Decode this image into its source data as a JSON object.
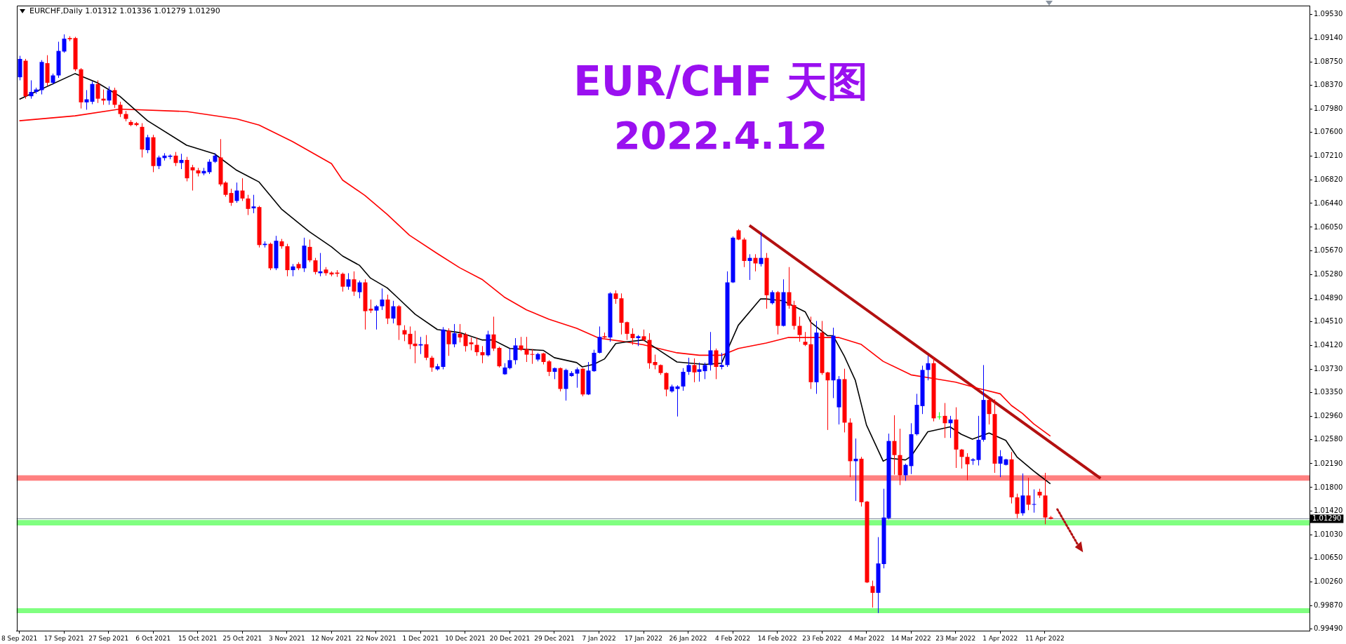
{
  "chart_data": {
    "type": "candlestick",
    "title": "EUR/CHF 天图",
    "subtitle": "2022.4.12",
    "annotations": [
      "EURCHF,Daily 1.01312 1.01336 1.01279 1.01290"
    ],
    "categories": [
      "8 Sep 2021",
      null,
      null,
      null,
      null,
      null,
      null,
      null,
      "17 Sep 2021",
      null,
      null,
      null,
      null,
      null,
      null,
      null,
      "27 Sep 2021",
      null,
      null,
      null,
      null,
      null,
      null,
      null,
      "6 Oct 2021",
      null,
      null,
      null,
      null,
      null,
      null,
      null,
      "15 Oct 2021",
      null,
      null,
      null,
      null,
      null,
      null,
      null,
      "25 Oct 2021",
      null,
      null,
      null,
      null,
      null,
      null,
      null,
      "3 Nov 2021",
      null,
      null,
      null,
      null,
      null,
      null,
      null,
      "12 Nov 2021",
      null,
      null,
      null,
      null,
      null,
      null,
      null,
      "22 Nov 2021",
      null,
      null,
      null,
      null,
      null,
      null,
      null,
      "1 Dec 2021",
      null,
      null,
      null,
      null,
      null,
      null,
      null,
      "10 Dec 2021",
      null,
      null,
      null,
      null,
      null,
      null,
      null,
      "20 Dec 2021",
      null,
      null,
      null,
      null,
      null,
      null,
      null,
      "29 Dec 2021",
      null,
      null,
      null,
      null,
      null,
      null,
      null,
      "7 Jan 2022",
      null,
      null,
      null,
      null,
      null,
      null,
      null,
      "17 Jan 2022",
      null,
      null,
      null,
      null,
      null,
      null,
      null,
      "26 Jan 2022",
      null,
      null,
      null,
      null,
      null,
      null,
      null,
      "4 Feb 2022",
      null,
      null,
      null,
      null,
      null,
      null,
      null,
      "14 Feb 2022",
      null,
      null,
      null,
      null,
      null,
      null,
      null,
      "23 Feb 2022",
      null,
      null,
      null,
      null,
      null,
      null,
      null,
      "4 Mar 2022",
      null,
      null,
      null,
      null,
      null,
      null,
      null,
      "14 Mar 2022",
      null,
      null,
      null,
      null,
      null,
      null,
      null,
      "23 Mar 2022",
      null,
      null,
      null,
      null,
      null,
      null,
      null,
      "1 Apr 2022",
      null,
      null,
      null,
      null,
      null,
      null,
      null,
      "11 Apr 2022",
      null,
      null,
      null,
      null,
      null,
      null,
      null,
      null,
      null,
      null,
      null,
      null,
      null,
      null,
      null,
      null,
      null,
      null,
      null,
      null,
      null,
      null,
      null,
      null,
      null,
      null,
      null,
      null,
      null,
      null,
      null,
      null,
      null,
      null,
      null,
      null,
      null,
      null,
      null,
      null,
      null,
      null,
      null,
      null,
      null,
      null,
      null
    ],
    "ohlc": [
      [
        1.085,
        1.0885,
        1.0845,
        1.088
      ],
      [
        1.0877,
        1.088,
        1.0815,
        1.0819
      ],
      [
        1.0819,
        1.0845,
        1.0815,
        1.0826
      ],
      [
        1.0826,
        1.0833,
        1.0823,
        1.083
      ],
      [
        1.0829,
        1.0878,
        1.0822,
        1.0875
      ],
      [
        1.0873,
        1.0886,
        1.0836,
        1.0841
      ],
      [
        1.0841,
        1.0856,
        1.0838,
        1.0853
      ],
      [
        1.0853,
        1.0908,
        1.0849,
        1.0893
      ],
      [
        1.0892,
        1.092,
        1.089,
        1.0913
      ],
      [
        1.0914,
        1.0917,
        1.0909,
        1.0912
      ],
      [
        1.0914,
        1.0916,
        1.086,
        1.0863
      ],
      [
        1.0863,
        1.0865,
        1.0799,
        1.0809
      ],
      [
        1.0809,
        1.0829,
        1.0797,
        1.0814
      ],
      [
        1.081,
        1.0843,
        1.0806,
        1.0839
      ],
      [
        1.0839,
        1.0845,
        1.0808,
        1.0815
      ],
      [
        1.0815,
        1.083,
        1.0805,
        1.0812
      ],
      [
        1.0812,
        1.0835,
        1.0805,
        1.0829
      ],
      [
        1.0829,
        1.0833,
        1.08,
        1.0805
      ],
      [
        1.0805,
        1.081,
        1.0785,
        1.079
      ],
      [
        1.079,
        1.0795,
        1.0778,
        1.0782
      ],
      [
        1.0777,
        1.078,
        1.077,
        1.0772
      ],
      [
        1.0775,
        1.0777,
        1.077,
        1.0772
      ],
      [
        1.0769,
        1.0775,
        1.0719,
        1.0732
      ],
      [
        1.0731,
        1.0756,
        1.0726,
        1.0752
      ],
      [
        1.0752,
        1.0756,
        1.0695,
        1.0705
      ],
      [
        1.0705,
        1.0722,
        1.07,
        1.0719
      ],
      [
        1.0718,
        1.0726,
        1.0714,
        1.0722
      ],
      [
        1.072,
        1.0724,
        1.0716,
        1.0722
      ],
      [
        1.0722,
        1.0728,
        1.0705,
        1.071
      ],
      [
        1.071,
        1.0725,
        1.07,
        1.0715
      ],
      [
        1.0715,
        1.072,
        1.068,
        1.0685
      ],
      [
        1.0703,
        1.0707,
        1.0665,
        1.0698
      ],
      [
        1.0698,
        1.0702,
        1.0688,
        1.0693
      ],
      [
        1.0693,
        1.0702,
        1.069,
        1.0697
      ],
      [
        1.0695,
        1.0716,
        1.0692,
        1.0712
      ],
      [
        1.0712,
        1.0726,
        1.071,
        1.0722
      ],
      [
        1.0719,
        1.0749,
        1.0672,
        1.0675
      ],
      [
        1.0678,
        1.068,
        1.0655,
        1.0658
      ],
      [
        1.0661,
        1.0668,
        1.064,
        1.0645
      ],
      [
        1.0648,
        1.0678,
        1.0645,
        1.0665
      ],
      [
        1.0665,
        1.0685,
        1.0648,
        1.0652
      ],
      [
        1.0652,
        1.0658,
        1.0625,
        1.0635
      ],
      [
        1.0636,
        1.0658,
        1.0628,
        1.0639
      ],
      [
        1.0638,
        1.064,
        1.0572,
        1.0576
      ],
      [
        1.0576,
        1.0582,
        1.0572,
        1.0578
      ],
      [
        1.0578,
        1.058,
        1.0535,
        1.0538
      ],
      [
        1.0538,
        1.0591,
        1.0535,
        1.0583
      ],
      [
        1.0582,
        1.0586,
        1.057,
        1.0574
      ],
      [
        1.0574,
        1.0578,
        1.0525,
        1.0535
      ],
      [
        1.0535,
        1.0545,
        1.0525,
        1.0541
      ],
      [
        1.0545,
        1.0548,
        1.0535,
        1.0538
      ],
      [
        1.0538,
        1.0588,
        1.0532,
        1.0575
      ],
      [
        1.0573,
        1.0585,
        1.0548,
        1.0551
      ],
      [
        1.0551,
        1.0555,
        1.0528,
        1.0532
      ],
      [
        1.053,
        1.0563,
        1.0525,
        1.0533
      ],
      [
        1.0536,
        1.054,
        1.0526,
        1.053
      ],
      [
        1.0531,
        1.0533,
        1.0525,
        1.0528
      ],
      [
        1.0531,
        1.0535,
        1.0524,
        1.0529
      ],
      [
        1.0529,
        1.0531,
        1.05,
        1.0508
      ],
      [
        1.0508,
        1.053,
        1.0503,
        1.052
      ],
      [
        1.052,
        1.0533,
        1.0493,
        1.05
      ],
      [
        1.0499,
        1.0518,
        1.0489,
        1.0515
      ],
      [
        1.0515,
        1.052,
        1.0438,
        1.0468
      ],
      [
        1.0472,
        1.0487,
        1.0465,
        1.0469
      ],
      [
        1.0469,
        1.0478,
        1.0438,
        1.0476
      ],
      [
        1.0476,
        1.0505,
        1.047,
        1.0487
      ],
      [
        1.0487,
        1.0495,
        1.0447,
        1.0456
      ],
      [
        1.0456,
        1.0485,
        1.0448,
        1.0476
      ],
      [
        1.0476,
        1.0478,
        1.0421,
        1.0445
      ],
      [
        1.0437,
        1.0445,
        1.0419,
        1.043
      ],
      [
        1.0431,
        1.0443,
        1.0406,
        1.0414
      ],
      [
        1.0415,
        1.0436,
        1.0383,
        1.0411
      ],
      [
        1.0412,
        1.0426,
        1.0398,
        1.0414
      ],
      [
        1.0414,
        1.0429,
        1.0388,
        1.0392
      ],
      [
        1.0392,
        1.0395,
        1.0369,
        1.0376
      ],
      [
        1.0373,
        1.0382,
        1.0371,
        1.0378
      ],
      [
        1.0377,
        1.0442,
        1.0373,
        1.0438
      ],
      [
        1.0436,
        1.044,
        1.0395,
        1.0414
      ],
      [
        1.0414,
        1.0447,
        1.0409,
        1.0432
      ],
      [
        1.0431,
        1.0447,
        1.0417,
        1.0425
      ],
      [
        1.043,
        1.0433,
        1.0402,
        1.0411
      ],
      [
        1.0417,
        1.0425,
        1.0404,
        1.0414
      ],
      [
        1.0413,
        1.0425,
        1.0395,
        1.0401
      ],
      [
        1.0401,
        1.0411,
        1.0383,
        1.0396
      ],
      [
        1.0396,
        1.0436,
        1.0394,
        1.043
      ],
      [
        1.043,
        1.0459,
        1.0403,
        1.0407
      ],
      [
        1.0408,
        1.041,
        1.0376,
        1.0378
      ],
      [
        1.0365,
        1.0383,
        1.0364,
        1.0376
      ],
      [
        1.0375,
        1.0407,
        1.0373,
        1.0388
      ],
      [
        1.0388,
        1.0424,
        1.0381,
        1.0412
      ],
      [
        1.0412,
        1.0426,
        1.0403,
        1.0405
      ],
      [
        1.0406,
        1.0426,
        1.0385,
        1.0397
      ],
      [
        1.0398,
        1.0406,
        1.0382,
        1.0397
      ],
      [
        1.0389,
        1.04,
        1.0386,
        1.0398
      ],
      [
        1.0399,
        1.04,
        1.0381,
        1.0385
      ],
      [
        1.0386,
        1.0388,
        1.0362,
        1.0369
      ],
      [
        1.0369,
        1.0376,
        1.0357,
        1.0375
      ],
      [
        1.0375,
        1.0376,
        1.0337,
        1.0341
      ],
      [
        1.0341,
        1.0374,
        1.0322,
        1.0372
      ],
      [
        1.0362,
        1.037,
        1.0361,
        1.0367
      ],
      [
        1.0366,
        1.0376,
        1.0343,
        1.0373
      ],
      [
        1.0374,
        1.0375,
        1.0329,
        1.0332
      ],
      [
        1.0332,
        1.0385,
        1.0331,
        1.0371
      ],
      [
        1.037,
        1.0405,
        1.0369,
        1.04
      ],
      [
        1.04,
        1.0443,
        1.0399,
        1.0426
      ],
      [
        1.0427,
        1.0433,
        1.0424,
        1.0425
      ],
      [
        1.0425,
        1.0499,
        1.0418,
        1.0497
      ],
      [
        1.0497,
        1.0502,
        1.048,
        1.0488
      ],
      [
        1.0489,
        1.0497,
        1.043,
        1.0449
      ],
      [
        1.045,
        1.0451,
        1.0421,
        1.0431
      ],
      [
        1.0431,
        1.044,
        1.0413,
        1.0424
      ],
      [
        1.0424,
        1.0429,
        1.0411,
        1.0427
      ],
      [
        1.0427,
        1.0438,
        1.0419,
        1.0421
      ],
      [
        1.0421,
        1.0432,
        1.0374,
        1.0383
      ],
      [
        1.0385,
        1.0397,
        1.0373,
        1.038
      ],
      [
        1.038,
        1.0381,
        1.0364,
        1.0367
      ],
      [
        1.0367,
        1.0368,
        1.0329,
        1.034
      ],
      [
        1.0337,
        1.0348,
        1.0335,
        1.0345
      ],
      [
        1.0341,
        1.0347,
        1.0296,
        1.0345
      ],
      [
        1.0345,
        1.0375,
        1.0338,
        1.0369
      ],
      [
        1.0369,
        1.0392,
        1.0364,
        1.038
      ],
      [
        1.038,
        1.0391,
        1.0352,
        1.0368
      ],
      [
        1.0369,
        1.0384,
        1.0353,
        1.0373
      ],
      [
        1.037,
        1.0384,
        1.0357,
        1.038
      ],
      [
        1.038,
        1.0434,
        1.0371,
        1.0404
      ],
      [
        1.0404,
        1.0407,
        1.0357,
        1.0377
      ],
      [
        1.0377,
        1.04,
        1.0373,
        1.038
      ],
      [
        1.038,
        1.0533,
        1.0377,
        1.0515
      ],
      [
        1.0515,
        1.059,
        1.0514,
        1.0588
      ],
      [
        1.06,
        1.0602,
        1.0584,
        1.0585
      ],
      [
        1.0585,
        1.0588,
        1.054,
        1.055
      ],
      [
        1.055,
        1.0561,
        1.0519,
        1.0555
      ],
      [
        1.0555,
        1.0561,
        1.0533,
        1.0546
      ],
      [
        1.0545,
        1.0597,
        1.0541,
        1.0555
      ],
      [
        1.0555,
        1.0563,
        1.0472,
        1.0494
      ],
      [
        1.0481,
        1.0502,
        1.0479,
        1.0499
      ],
      [
        1.0499,
        1.0501,
        1.043,
        1.0444
      ],
      [
        1.0444,
        1.052,
        1.0443,
        1.0499
      ],
      [
        1.0499,
        1.054,
        1.0472,
        1.0477
      ],
      [
        1.0478,
        1.0485,
        1.0438,
        1.0444
      ],
      [
        1.0444,
        1.0459,
        1.0418,
        1.0429
      ],
      [
        1.0418,
        1.0434,
        1.0411,
        1.0413
      ],
      [
        1.0414,
        1.0459,
        1.0341,
        1.0352
      ],
      [
        1.0352,
        1.0452,
        1.0333,
        1.0433
      ],
      [
        1.0433,
        1.0452,
        1.0364,
        1.0367
      ],
      [
        1.0368,
        1.0369,
        1.0274,
        1.0355
      ],
      [
        1.0355,
        1.0441,
        1.0326,
        1.0428
      ],
      [
        1.0311,
        1.0362,
        1.0283,
        1.0357
      ],
      [
        1.0357,
        1.0374,
        1.027,
        1.0286
      ],
      [
        1.0286,
        1.0293,
        1.0197,
        1.0223
      ],
      [
        1.0223,
        1.026,
        1.0158,
        1.0227
      ],
      [
        1.0227,
        1.023,
        1.0149,
        1.0156
      ],
      [
        1.0157,
        1.0158,
        1.0024,
        1.0025
      ],
      [
        1.0019,
        1.0028,
        0.9984,
        1.0008
      ],
      [
        1.0008,
        1.0099,
        0.9975,
        1.0056
      ],
      [
        1.0055,
        1.0178,
        1.0048,
        1.0131
      ],
      [
        1.013,
        1.0268,
        1.0128,
        1.0256
      ],
      [
        1.0256,
        1.0298,
        1.0201,
        1.0233
      ],
      [
        1.0233,
        1.0276,
        1.0184,
        1.02
      ],
      [
        1.02,
        1.0219,
        1.0191,
        1.0217
      ],
      [
        1.0215,
        1.0285,
        1.0202,
        1.0267
      ],
      [
        1.0267,
        1.0333,
        1.0265,
        1.0315
      ],
      [
        1.0313,
        1.0379,
        1.03,
        1.0372
      ],
      [
        1.0372,
        1.0395,
        1.0355,
        1.0383
      ],
      [
        1.0383,
        1.0393,
        1.0288,
        1.0293
      ],
      [
        1.0296,
        1.0303,
        1.0291,
        1.0296
      ],
      [
        1.0297,
        1.0318,
        1.0261,
        1.0285
      ],
      [
        1.0285,
        1.0297,
        1.0261,
        1.0291
      ],
      [
        1.0291,
        1.0311,
        1.0212,
        1.0242
      ],
      [
        1.0242,
        1.0243,
        1.0211,
        1.023
      ],
      [
        1.023,
        1.0236,
        1.0192,
        1.0218
      ],
      [
        1.0224,
        1.0228,
        1.0217,
        1.0226
      ],
      [
        1.0225,
        1.0297,
        1.0216,
        1.0258
      ],
      [
        1.0258,
        1.038,
        1.0255,
        1.0323
      ],
      [
        1.0323,
        1.0325,
        1.0283,
        1.03
      ],
      [
        1.03,
        1.0324,
        1.0204,
        1.0219
      ],
      [
        1.0219,
        1.0241,
        1.0197,
        1.0231
      ],
      [
        1.0217,
        1.0227,
        1.0216,
        1.0226
      ],
      [
        1.0226,
        1.0238,
        1.0154,
        1.0164
      ],
      [
        1.0164,
        1.017,
        1.013,
        1.0137
      ],
      [
        1.0138,
        1.0203,
        1.0134,
        1.0167
      ],
      [
        1.0167,
        1.0196,
        1.0143,
        1.0152
      ],
      [
        1.0152,
        1.0177,
        1.0139,
        1.0153
      ],
      [
        1.0173,
        1.0178,
        1.0163,
        1.0167
      ],
      [
        1.0167,
        1.0204,
        1.012,
        1.0131
      ],
      [
        1.01312,
        1.01336,
        1.01279,
        1.0129
      ],
      null,
      null,
      null,
      null,
      null,
      null,
      null,
      null,
      null,
      null,
      null,
      null,
      null,
      null,
      null,
      null,
      null,
      null,
      null,
      null,
      null,
      null,
      null,
      null,
      null,
      null,
      null,
      null,
      null,
      null,
      null,
      null,
      null,
      null,
      null,
      null,
      null,
      null,
      null,
      null,
      null,
      null,
      null,
      null,
      null,
      null
    ],
    "colors": [
      "#0000ff",
      "#ff0000",
      "#0000ff",
      "#0000ff",
      "#0000ff",
      "#ff0000",
      "#0000ff",
      "#0000ff",
      "#0000ff",
      "#ff0000",
      "#ff0000",
      "#ff0000",
      "#0000ff",
      "#0000ff",
      "#ff0000",
      "#ff0000",
      "#0000ff",
      "#ff0000",
      "#ff0000",
      "#ff0000",
      "#ff0000",
      "#ff0000",
      "#ff0000",
      "#0000ff",
      "#ff0000",
      "#0000ff",
      "#0000ff",
      "#0000ff",
      "#ff0000",
      "#0000ff",
      "#ff0000",
      "#ff0000",
      "#ff0000",
      "#0000ff",
      "#0000ff",
      "#0000ff",
      "#ff0000",
      "#ff0000",
      "#ff0000",
      "#0000ff",
      "#ff0000",
      "#ff0000",
      "#0000ff",
      "#ff0000",
      "#0000ff",
      "#ff0000",
      "#0000ff",
      "#ff0000",
      "#ff0000",
      "#0000ff",
      "#ff0000",
      "#0000ff",
      "#ff0000",
      "#ff0000",
      "#0000ff",
      "#ff0000",
      "#ff0000",
      "#ff0000",
      "#ff0000",
      "#0000ff",
      "#ff0000",
      "#0000ff",
      "#ff0000",
      "#ff0000",
      "#0000ff",
      "#0000ff",
      "#ff0000",
      "#0000ff",
      "#ff0000",
      "#ff0000",
      "#ff0000",
      "#ff0000",
      "#0000ff",
      "#ff0000",
      "#ff0000",
      "#0000ff",
      "#0000ff",
      "#ff0000",
      "#0000ff",
      "#ff0000",
      "#ff0000",
      "#ff0000",
      "#ff0000",
      "#ff0000",
      "#0000ff",
      "#ff0000",
      "#ff0000",
      "#0000ff",
      "#0000ff",
      "#0000ff",
      "#ff0000",
      "#ff0000",
      "#ff0000",
      "#0000ff",
      "#ff0000",
      "#ff0000",
      "#0000ff",
      "#ff0000",
      "#0000ff",
      "#0000ff",
      "#0000ff",
      "#ff0000",
      "#0000ff",
      "#0000ff",
      "#0000ff",
      "#ff0000",
      "#0000ff",
      "#ff0000",
      "#ff0000",
      "#ff0000",
      "#ff0000",
      "#0000ff",
      "#ff0000",
      "#ff0000",
      "#ff0000",
      "#ff0000",
      "#ff0000",
      "#0000ff",
      "#0000ff",
      "#0000ff",
      "#0000ff",
      "#ff0000",
      "#0000ff",
      "#0000ff",
      "#0000ff",
      "#ff0000",
      "#0000ff",
      "#0000ff",
      "#0000ff",
      "#ff0000",
      "#ff0000",
      "#0000ff",
      "#ff0000",
      "#0000ff",
      "#ff0000",
      "#0000ff",
      "#ff0000",
      "#0000ff",
      "#ff0000",
      "#ff0000",
      "#ff0000",
      "#ff0000",
      "#ff0000",
      "#0000ff",
      "#ff0000",
      "#ff0000",
      "#0000ff",
      "#0000ff",
      "#ff0000",
      "#ff0000",
      "#0000ff",
      "#ff0000",
      "#ff0000",
      "#ff0000",
      "#0000ff",
      "#0000ff",
      "#0000ff",
      "#ff0000",
      "#ff0000",
      "#0000ff",
      "#0000ff",
      "#0000ff",
      "#0000ff",
      "#0000ff",
      "#ff0000",
      "#00ff00",
      "#ff0000",
      "#0000ff",
      "#ff0000",
      "#ff0000",
      "#ff0000",
      "#0000ff",
      "#0000ff",
      "#0000ff",
      "#ff0000",
      "#ff0000",
      "#0000ff",
      "#0000ff",
      "#ff0000",
      "#ff0000",
      "#0000ff",
      "#ff0000",
      "#0000ff",
      "#ff0000",
      "#ff0000",
      "#ff0000",
      null,
      null,
      null,
      null,
      null,
      null,
      null,
      null,
      null,
      null,
      null,
      null,
      null,
      null,
      null,
      null,
      null,
      null,
      null,
      null,
      null,
      null,
      null,
      null,
      null,
      null,
      null,
      null,
      null,
      null,
      null,
      null,
      null,
      null,
      null,
      null,
      null,
      null,
      null,
      null,
      null,
      null,
      null,
      null,
      null,
      null
    ],
    "series": [
      {
        "type": "line",
        "color": "#000000",
        "values": [
          1.0814,
          null,
          null,
          null,
          null,
          null,
          null,
          null,
          null,
          null,
          1.0856,
          null,
          null,
          null,
          1.0841,
          null,
          null,
          null,
          1.0819,
          null,
          null,
          null,
          null,
          1.0779,
          null,
          null,
          null,
          null,
          null,
          null,
          1.0739,
          null,
          null,
          null,
          null,
          1.0725,
          null,
          null,
          null,
          1.0698,
          null,
          null,
          null,
          1.0679,
          null,
          null,
          null,
          1.0635,
          null,
          null,
          null,
          null,
          1.0598,
          null,
          null,
          null,
          1.0573,
          null,
          1.0558,
          null,
          null,
          1.0543,
          null,
          1.0522,
          null,
          null,
          1.0506,
          null,
          1.0489,
          null,
          null,
          1.0463,
          null,
          null,
          null,
          1.0438,
          null,
          null,
          null,
          1.0433,
          null,
          null,
          null,
          1.0421,
          null,
          1.0421,
          null,
          null,
          1.0407,
          null,
          null,
          null,
          null,
          null,
          1.0404,
          null,
          1.0392,
          null,
          null,
          null,
          1.0384,
          1.0377,
          null,
          1.0381,
          null,
          1.039,
          null,
          1.0415,
          null,
          1.0418,
          null,
          null,
          1.0421,
          null,
          1.0409,
          null,
          null,
          null,
          1.0385,
          null,
          null,
          null,
          null,
          1.0381,
          null,
          null,
          1.0383,
          null,
          null,
          1.0445,
          null,
          null,
          null,
          1.0488,
          1.0488,
          null,
          null,
          1.0485,
          null,
          null,
          null,
          1.0467,
          1.045,
          null,
          null,
          1.0428,
          1.0428,
          null,
          1.0395,
          null,
          1.0355,
          null,
          1.0282,
          null,
          null,
          1.0223,
          1.0228,
          null,
          null,
          1.0225,
          1.0231,
          null,
          null,
          1.0271,
          null,
          null,
          null,
          1.0279,
          null,
          1.0267,
          null,
          1.0259,
          null,
          null,
          1.0269,
          null,
          null,
          1.0257,
          null,
          1.023,
          null,
          null,
          1.0207,
          1.02,
          null,
          1.0186,
          null,
          null,
          null,
          null,
          null,
          null,
          null,
          null,
          null,
          null,
          null,
          null,
          null,
          null,
          null,
          null,
          null,
          null,
          null,
          null,
          null,
          null,
          null,
          null,
          null,
          null,
          null,
          null,
          null,
          null,
          null,
          null,
          null,
          null,
          null,
          null,
          null,
          null,
          null,
          null,
          null,
          null,
          null,
          null,
          null,
          null
        ]
      },
      {
        "type": "line",
        "color": "#ff0000",
        "values": [
          1.0779,
          null,
          null,
          null,
          null,
          null,
          null,
          null,
          null,
          null,
          1.0787,
          null,
          null,
          null,
          null,
          null,
          null,
          null,
          1.0798,
          null,
          null,
          null,
          null,
          null,
          null,
          null,
          null,
          null,
          null,
          null,
          1.0794,
          null,
          null,
          null,
          null,
          null,
          null,
          null,
          null,
          1.0782,
          null,
          null,
          null,
          1.0772,
          null,
          null,
          null,
          null,
          null,
          1.0745,
          null,
          null,
          null,
          null,
          null,
          null,
          1.0709,
          null,
          1.0682,
          null,
          null,
          null,
          1.0657,
          null,
          null,
          null,
          1.0626,
          null,
          null,
          null,
          1.0592,
          null,
          null,
          null,
          null,
          1.0562,
          null,
          null,
          null,
          1.0539,
          null,
          null,
          null,
          1.052,
          null,
          null,
          null,
          1.0491,
          null,
          null,
          null,
          1.047,
          null,
          null,
          null,
          1.0455,
          null,
          null,
          null,
          null,
          1.044,
          null,
          null,
          null,
          1.0424,
          null,
          null,
          null,
          1.0419,
          null,
          null,
          null,
          1.0413,
          null,
          null,
          null,
          null,
          null,
          1.04,
          null,
          null,
          null,
          1.0396,
          null,
          null,
          null,
          1.0396,
          null,
          null,
          1.0407,
          null,
          null,
          null,
          null,
          1.0416,
          null,
          null,
          null,
          1.0425,
          null,
          null,
          1.0425,
          null,
          null,
          null,
          null,
          null,
          1.0425,
          null,
          null,
          null,
          1.0414,
          null,
          null,
          null,
          1.0386,
          null,
          null,
          null,
          null,
          1.0364,
          null,
          null,
          null,
          1.0358,
          null,
          null,
          null,
          1.0352,
          null,
          null,
          null,
          1.0342,
          null,
          null,
          null,
          1.0333,
          null,
          1.0314,
          null,
          1.0301,
          null,
          1.0284,
          null,
          null,
          1.0264,
          null,
          null,
          null,
          null,
          null,
          null,
          null,
          null,
          null,
          null,
          null,
          null,
          null,
          null,
          null,
          null,
          null,
          null,
          null,
          null,
          null,
          null,
          null,
          null,
          null,
          null,
          null,
          null,
          null,
          null,
          null,
          null,
          null,
          null,
          null,
          null,
          null,
          null,
          null,
          null,
          null,
          null,
          null,
          null,
          null,
          null
        ]
      },
      {
        "type": "line",
        "color": "#b31010",
        "values": [
          null,
          null,
          null,
          null,
          null,
          null,
          null,
          null,
          null,
          null,
          null,
          null,
          null,
          null,
          null,
          null,
          null,
          null,
          null,
          null,
          null,
          null,
          null,
          null,
          null,
          null,
          null,
          null,
          null,
          null,
          null,
          null,
          null,
          null,
          null,
          null,
          null,
          null,
          null,
          null,
          null,
          null,
          null,
          null,
          null,
          null,
          null,
          null,
          null,
          null,
          null,
          null,
          null,
          null,
          null,
          null,
          null,
          null,
          null,
          null,
          null,
          null,
          null,
          null,
          null,
          null,
          null,
          null,
          null,
          null,
          null,
          null,
          null,
          null,
          null,
          null,
          null,
          null,
          null,
          null,
          null,
          null,
          null,
          null,
          null,
          null,
          null,
          null,
          null,
          null,
          null,
          null,
          null,
          null,
          null,
          null,
          null,
          null,
          null,
          null,
          null,
          null,
          null,
          null,
          null,
          null,
          null,
          null,
          null,
          null,
          null,
          null,
          null,
          null,
          null,
          null,
          null,
          null,
          null,
          null,
          null,
          null,
          null,
          null,
          null,
          null,
          null,
          null,
          null,
          null,
          null,
          1.0608,
          null,
          null,
          null,
          null,
          null,
          null,
          null,
          null,
          null,
          null,
          null,
          null,
          null,
          null,
          null,
          null,
          null,
          null,
          null,
          null,
          null,
          null,
          null,
          null,
          null,
          null,
          null,
          null,
          null,
          null,
          null,
          null,
          null,
          null,
          null,
          null,
          null,
          null,
          null,
          null,
          null,
          null,
          null,
          null,
          null,
          null,
          null,
          null,
          null,
          null,
          null,
          null,
          null,
          null,
          null,
          null,
          null,
          null,
          null,
          null,
          null,
          null,
          1.0195,
          null,
          null,
          null,
          null,
          null,
          null,
          null,
          null,
          null,
          null,
          null,
          null,
          null,
          null,
          null,
          null,
          null,
          null,
          null,
          null,
          null,
          null,
          null,
          null,
          null,
          null,
          null,
          null,
          null,
          null,
          null,
          null,
          null,
          null,
          null,
          null,
          null
        ]
      }
    ],
    "ylim": [
      0.9946,
      1.0967
    ],
    "yticks": [
      {
        "value": 1.0953,
        "label": "1.09530"
      },
      {
        "value": 1.0914,
        "label": "1.09140"
      },
      {
        "value": 1.0875,
        "label": "1.08750"
      },
      {
        "value": 1.0837,
        "label": "1.08370"
      },
      {
        "value": 1.0798,
        "label": "1.07980"
      },
      {
        "value": 1.076,
        "label": "1.07600"
      },
      {
        "value": 1.0721,
        "label": "1.07210"
      },
      {
        "value": 1.0682,
        "label": "1.06820"
      },
      {
        "value": 1.0644,
        "label": "1.06440"
      },
      {
        "value": 1.0605,
        "label": "1.06050"
      },
      {
        "value": 1.0567,
        "label": "1.05670"
      },
      {
        "value": 1.0528,
        "label": "1.05280"
      },
      {
        "value": 1.0489,
        "label": "1.04890"
      },
      {
        "value": 1.0451,
        "label": "1.04510"
      },
      {
        "value": 1.0412,
        "label": "1.04120"
      },
      {
        "value": 1.0373,
        "label": "1.03730"
      },
      {
        "value": 1.0335,
        "label": "1.03350"
      },
      {
        "value": 1.0296,
        "label": "1.02960"
      },
      {
        "value": 1.0258,
        "label": "1.02580"
      },
      {
        "value": 1.0219,
        "label": "1.02190"
      },
      {
        "value": 1.018,
        "label": "1.01800"
      },
      {
        "value": 1.0142,
        "label": "1.01420"
      },
      {
        "value": 1.0103,
        "label": "1.01030"
      },
      {
        "value": 1.0065,
        "label": "1.00650"
      },
      {
        "value": 1.0026,
        "label": "1.00260"
      },
      {
        "value": 0.9987,
        "label": "0.99870"
      },
      {
        "value": 0.9949,
        "label": "0.99490"
      }
    ],
    "ref_lines": [
      {
        "axis": "y",
        "value": 1.0129,
        "label": "1.01290",
        "color": "#7f8c9c"
      }
    ],
    "bands": [
      {
        "axis": "y",
        "from": 1.0191,
        "to": 1.02,
        "color": "#ff8080"
      },
      {
        "axis": "y",
        "from": 1.0118,
        "to": 1.0127,
        "color": "#80ff80"
      },
      {
        "axis": "y",
        "from": 0.9975,
        "to": 0.9983,
        "color": "#80ff80"
      }
    ]
  }
}
